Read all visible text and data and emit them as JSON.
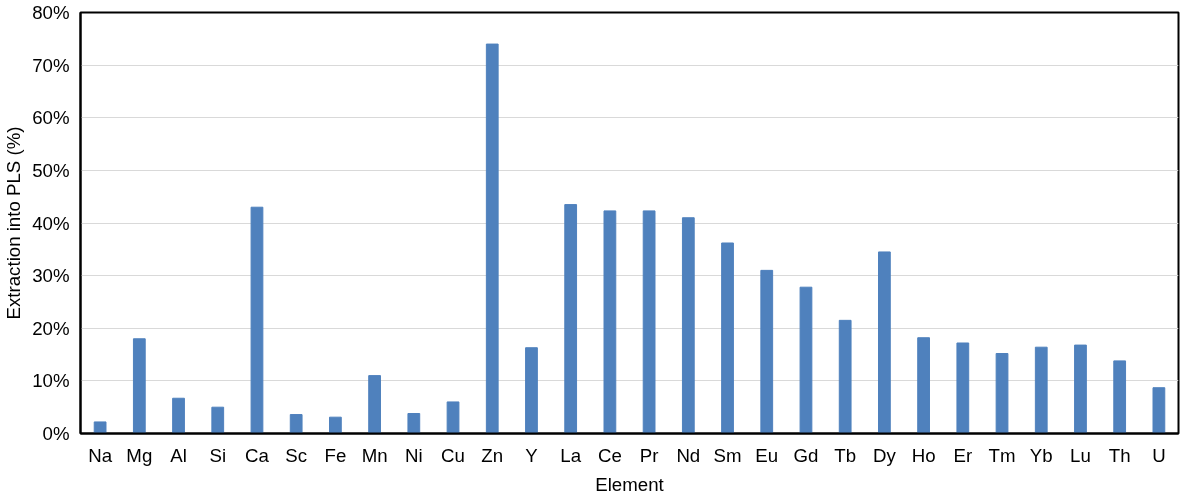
{
  "chart_data": {
    "type": "bar",
    "xlabel": "Element",
    "ylabel": "Extraction into PLS (%)",
    "categories": [
      "Na",
      "Mg",
      "Al",
      "Si",
      "Ca",
      "Sc",
      "Fe",
      "Mn",
      "Ni",
      "Cu",
      "Zn",
      "Y",
      "La",
      "Ce",
      "Pr",
      "Nd",
      "Sm",
      "Eu",
      "Gd",
      "Tb",
      "Dy",
      "Ho",
      "Er",
      "Tm",
      "Yb",
      "Lu",
      "Th",
      "U"
    ],
    "series": [
      {
        "color": "#4f81bd",
        "values": [
          2.2,
          18,
          6.7,
          5,
          43,
          3.6,
          3.1,
          11,
          3.8,
          6,
          74,
          16.3,
          43.5,
          42.3,
          42.3,
          41,
          36.2,
          31,
          27.8,
          21.5,
          34.5,
          18.2,
          17.2,
          15.2,
          16.4,
          16.8,
          13.8,
          8.7
        ]
      }
    ],
    "ylim": [
      0,
      80
    ],
    "yticks": [
      {
        "value": 0,
        "label": "0%"
      },
      {
        "value": 10,
        "label": "10%"
      },
      {
        "value": 20,
        "label": "20%"
      },
      {
        "value": 30,
        "label": "30%"
      },
      {
        "value": 40,
        "label": "40%"
      },
      {
        "value": 50,
        "label": "50%"
      },
      {
        "value": 60,
        "label": "60%"
      },
      {
        "value": 70,
        "label": "70%"
      },
      {
        "value": 80,
        "label": "80%"
      }
    ],
    "grid": "y"
  }
}
